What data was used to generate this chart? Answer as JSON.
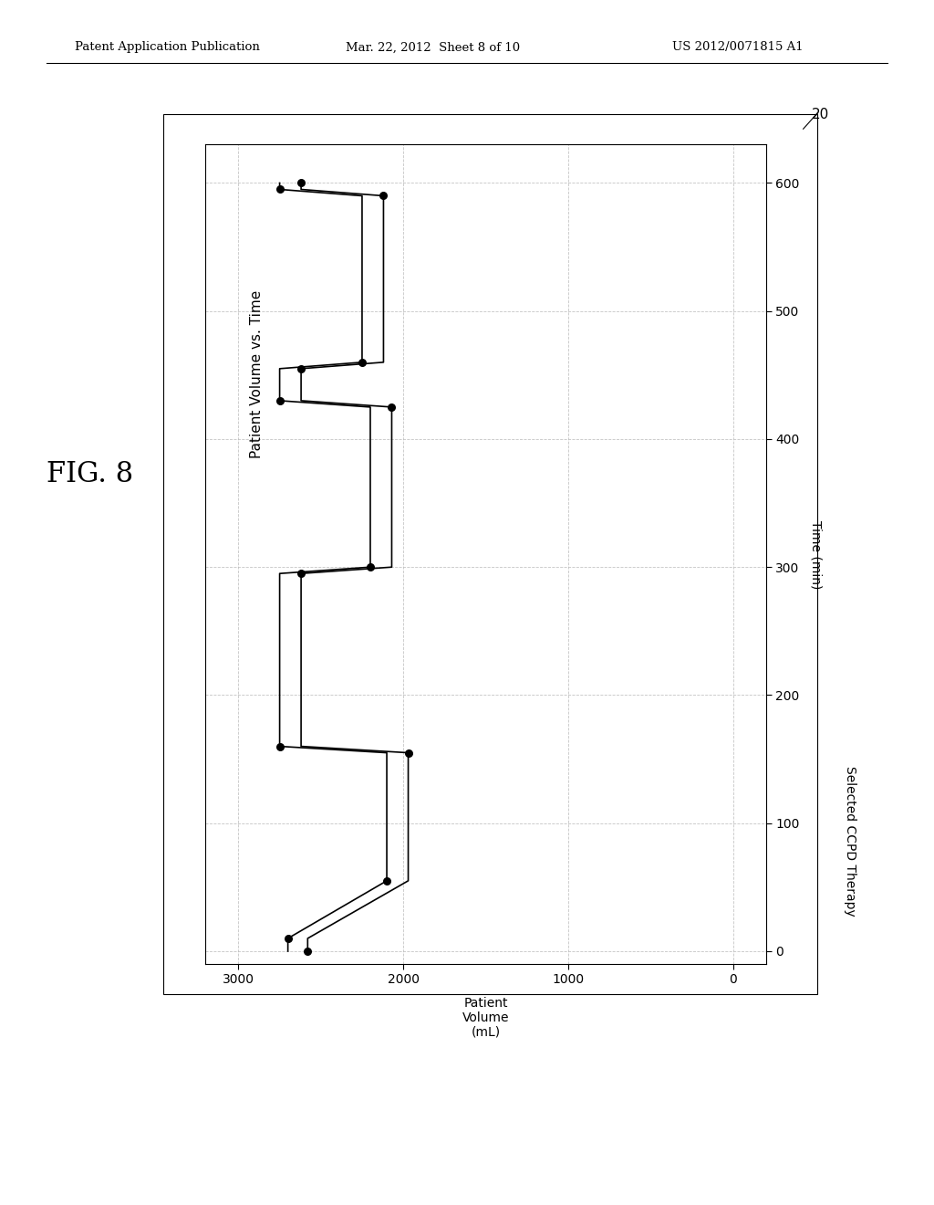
{
  "title_chart": "Patient Volume vs. Time",
  "xlabel_rotated": "Time (min)",
  "xlabel2_rotated": "Selected CCPD Therapy",
  "ylabel_rotated": "Patient\nVolume\n(mL)",
  "xlim": [
    0,
    3200
  ],
  "ylim": [
    0,
    600
  ],
  "xticks": [
    0,
    1000,
    2000,
    3000
  ],
  "yticks": [
    0,
    100,
    200,
    300,
    400,
    500,
    600
  ],
  "background_color": "#ffffff",
  "grid_color": "#bbbbbb",
  "line_color": "#000000",
  "fig_label": "20",
  "fig_title": "FIG. 8",
  "header_text": "Patent Application Publication",
  "header_date": "Mar. 22, 2012  Sheet 8 of 10",
  "header_patent": "US 2012/0071815 A1",
  "upper_vol": [
    2700,
    2700,
    2100,
    2100,
    2750,
    2750,
    2200,
    2200,
    2750,
    2750,
    2250,
    2250,
    2750,
    2750
  ],
  "upper_time": [
    0,
    10,
    55,
    155,
    160,
    295,
    300,
    425,
    430,
    455,
    460,
    590,
    595,
    600
  ],
  "lower_vol": [
    2580,
    2580,
    1970,
    1970,
    2620,
    2620,
    2070,
    2070,
    2620,
    2620,
    2120,
    2120,
    2620,
    2620
  ],
  "lower_time": [
    0,
    10,
    55,
    155,
    160,
    295,
    300,
    425,
    430,
    455,
    460,
    590,
    595,
    600
  ],
  "upper_dots_vol": [
    2700,
    2100,
    2750,
    2200,
    2750,
    2250,
    2750
  ],
  "upper_dots_time": [
    10,
    55,
    160,
    300,
    430,
    460,
    595
  ],
  "lower_dots_vol": [
    2580,
    1970,
    2620,
    2070,
    2620,
    2120,
    2620
  ],
  "lower_dots_time": [
    0,
    155,
    295,
    425,
    455,
    590,
    600
  ]
}
